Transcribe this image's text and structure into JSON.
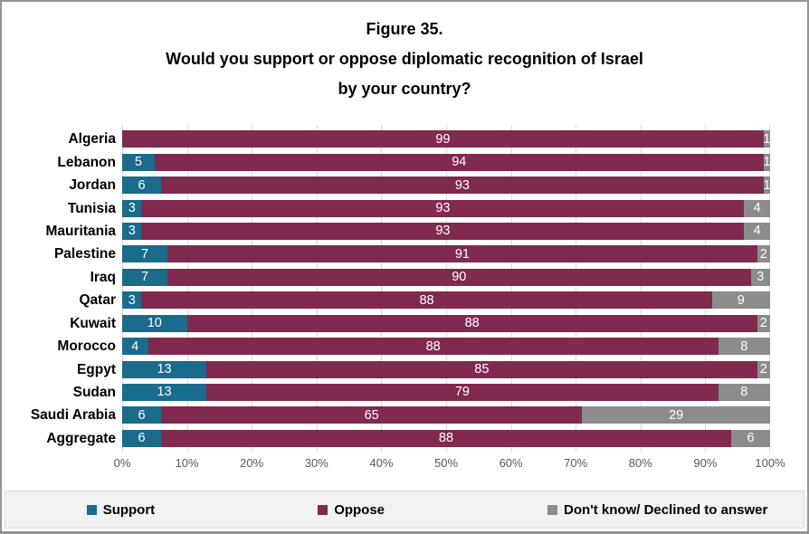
{
  "chart_data": {
    "type": "bar",
    "orientation": "horizontal",
    "stacked": true,
    "title_lines": [
      "Figure 35.",
      "Would you support or oppose diplomatic recognition of Israel",
      "by your country?"
    ],
    "categories": [
      "Algeria",
      "Lebanon",
      "Jordan",
      "Tunisia",
      "Mauritania",
      "Palestine",
      "Iraq",
      "Qatar",
      "Kuwait",
      "Morocco",
      "Egpyt",
      "Sudan",
      "Saudi Arabia",
      "Aggregate"
    ],
    "series": [
      {
        "name": "Support",
        "color": "#1A6B8C",
        "values": [
          0,
          5,
          6,
          3,
          3,
          7,
          7,
          3,
          10,
          4,
          13,
          13,
          6,
          6
        ]
      },
      {
        "name": "Oppose",
        "color": "#802A50",
        "values": [
          99,
          94,
          93,
          93,
          93,
          91,
          90,
          88,
          88,
          88,
          85,
          79,
          65,
          88
        ]
      },
      {
        "name": "Don't know/ Declined to answer",
        "color": "#8C8C8C",
        "values": [
          1,
          1,
          1,
          4,
          4,
          2,
          3,
          9,
          2,
          8,
          2,
          8,
          29,
          6
        ]
      }
    ],
    "x_axis": {
      "min": 0,
      "max": 100,
      "tick_labels": [
        "0%",
        "10%",
        "20%",
        "30%",
        "40%",
        "50%",
        "60%",
        "70%",
        "80%",
        "90%",
        "100%"
      ]
    },
    "legend_position": "bottom",
    "grid": true,
    "colors": {
      "gridline": "#D9D9D9",
      "axis_text": "#595959",
      "legend_background": "#F2F2F2",
      "figure_border": "#949494",
      "value_label_text": "#FFFFFF"
    }
  }
}
